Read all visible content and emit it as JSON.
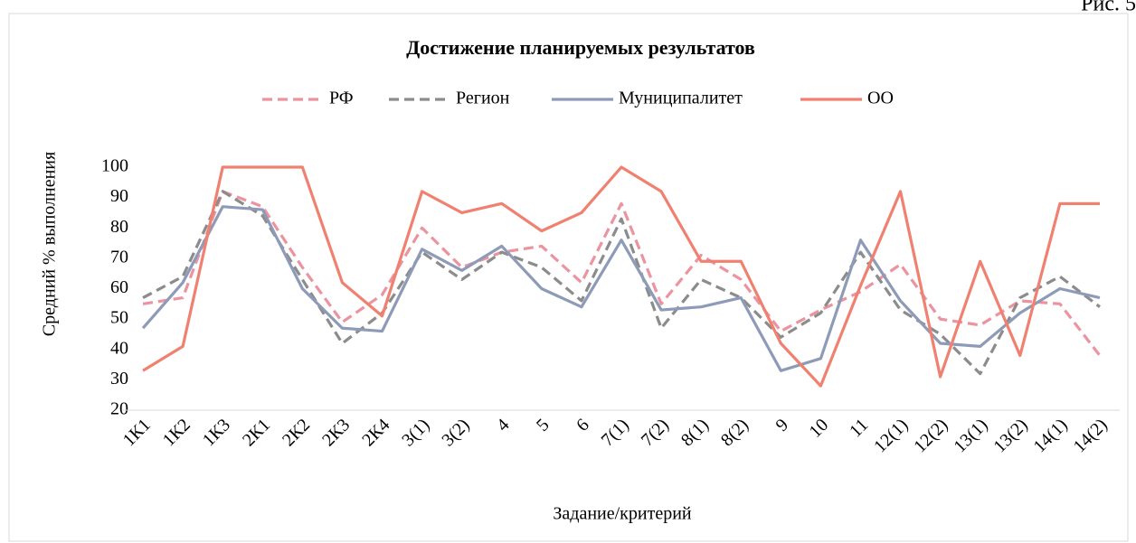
{
  "caption": "Рис. 5",
  "chart_data": {
    "type": "line",
    "title": "Достижение планируемых результатов",
    "x_label": "Задание/критерий",
    "y_label": "Средний % выполнения",
    "categories": [
      "1К1",
      "1К2",
      "1К3",
      "2К1",
      "2К2",
      "2К3",
      "2К4",
      "3(1)",
      "3(2)",
      "4",
      "5",
      "6",
      "7(1)",
      "7(2)",
      "8(1)",
      "8(2)",
      "9",
      "10",
      "11",
      "12(1)",
      "12(2)",
      "13(1)",
      "13(2)",
      "14(1)",
      "14(2)"
    ],
    "series": [
      {
        "name": "РФ",
        "color": "#ec93a0",
        "dashed": true,
        "values": [
          55,
          57,
          92,
          87,
          67,
          49,
          58,
          80,
          67,
          72,
          74,
          62,
          88,
          55,
          71,
          63,
          46,
          53,
          59,
          68,
          50,
          48,
          56,
          55,
          38
        ]
      },
      {
        "name": "Регион",
        "color": "#8c8c8c",
        "dashed": true,
        "values": [
          57,
          64,
          92,
          84,
          63,
          42,
          52,
          72,
          63,
          72,
          67,
          56,
          83,
          47,
          63,
          57,
          44,
          52,
          72,
          53,
          45,
          32,
          57,
          64,
          54
        ]
      },
      {
        "name": "Муниципалитет",
        "color": "#8e9bb8",
        "dashed": false,
        "values": [
          47,
          62,
          87,
          86,
          60,
          47,
          46,
          73,
          66,
          74,
          60,
          54,
          76,
          53,
          54,
          57,
          33,
          37,
          76,
          56,
          42,
          41,
          52,
          60,
          57
        ]
      },
      {
        "name": "ОО",
        "color": "#f0806f",
        "dashed": false,
        "values": [
          33,
          41,
          100,
          100,
          100,
          62,
          51,
          92,
          85,
          88,
          79,
          85,
          100,
          92,
          69,
          69,
          42,
          28,
          61,
          92,
          31,
          69,
          38,
          88,
          88
        ]
      }
    ],
    "ylim": [
      20,
      100
    ],
    "yticks": [
      20,
      30,
      40,
      50,
      60,
      70,
      80,
      90,
      100
    ],
    "grid": false,
    "legend": "top"
  }
}
